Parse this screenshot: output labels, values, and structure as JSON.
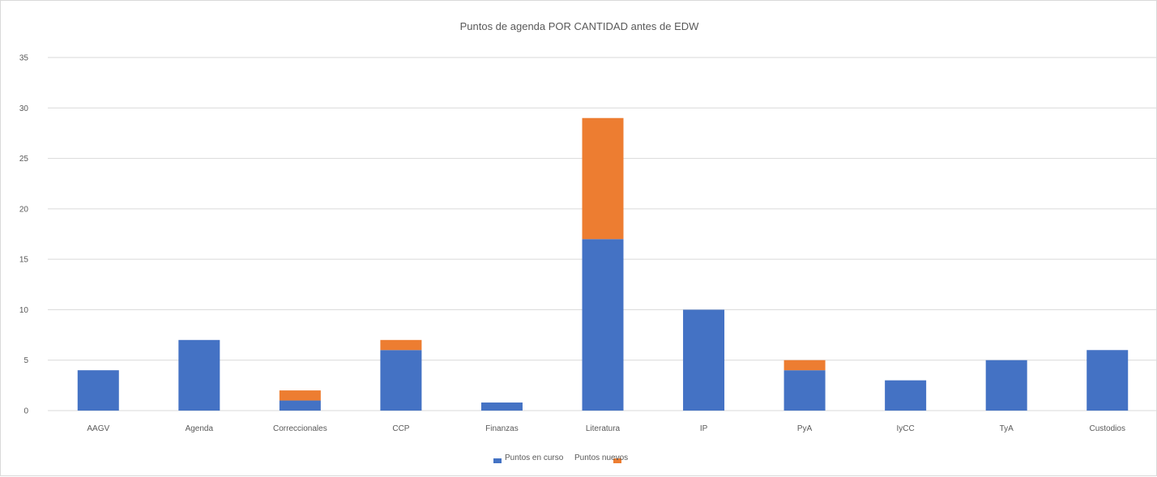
{
  "chart_data": {
    "type": "bar",
    "stacked": true,
    "title": "Puntos de agenda POR CANTIDAD antes de EDW",
    "xlabel": "",
    "ylabel": "",
    "categories": [
      "AAGV",
      "Agenda",
      "Correccionales",
      "CCP",
      "Finanzas",
      "Literatura",
      "IP",
      "PyA",
      "IyCC",
      "TyA",
      "Custodios"
    ],
    "series": [
      {
        "name": "Puntos en curso",
        "color": "#4472C4",
        "values": [
          4,
          7,
          1,
          6,
          0.8,
          17,
          10,
          4,
          3,
          5,
          6
        ]
      },
      {
        "name": "Puntos nuevos",
        "color": "#ED7D31",
        "values": [
          0,
          0,
          1,
          1,
          0,
          12,
          0,
          1,
          0,
          0,
          0
        ]
      }
    ],
    "ylim": [
      0,
      35
    ],
    "yticks": [
      0,
      5,
      10,
      15,
      20,
      25,
      30,
      35
    ],
    "grid": true,
    "legend_position": "bottom"
  }
}
